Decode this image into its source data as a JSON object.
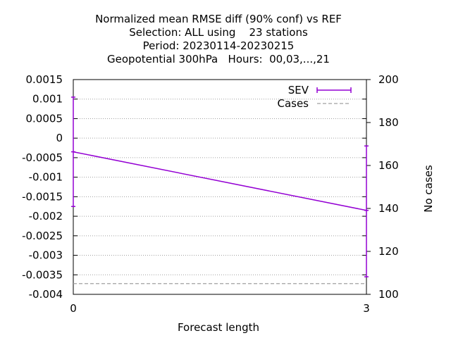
{
  "chart_data": {
    "type": "line",
    "title_lines": [
      "Normalized mean RMSE diff (90% conf) vs REF",
      "Selection: ALL using    23 stations",
      "Period: 20230114-20230215",
      "Geopotential 300hPa   Hours:  00,03,...,21"
    ],
    "xlabel": "Forecast length",
    "ylabel": "",
    "y2label": "No cases",
    "x": [
      0,
      3
    ],
    "xlim": [
      0,
      3
    ],
    "xticks": [
      "0",
      "3"
    ],
    "ylim": [
      -0.004,
      0.0015
    ],
    "yticks": [
      "0.0015",
      "0.001",
      "0.0005",
      "0",
      "-0.0005",
      "-0.001",
      "-0.0015",
      "-0.002",
      "-0.0025",
      "-0.003",
      "-0.0035",
      "-0.004"
    ],
    "y2lim": [
      100,
      200
    ],
    "y2ticks": [
      "200",
      "180",
      "160",
      "140",
      "120",
      "100"
    ],
    "grid": "horizontal dotted",
    "legend_position": "top-right",
    "series": [
      {
        "name": "SEV",
        "axis": "left",
        "color": "#9400d3",
        "values": [
          -0.00035,
          -0.00185
        ],
        "error_low": [
          -0.00175,
          -0.00355
        ],
        "error_high": [
          0.00105,
          -0.0002
        ]
      },
      {
        "name": "Cases",
        "axis": "right",
        "color": "#a0a0a0",
        "style": "dashed",
        "values": [
          105,
          105
        ]
      }
    ]
  }
}
